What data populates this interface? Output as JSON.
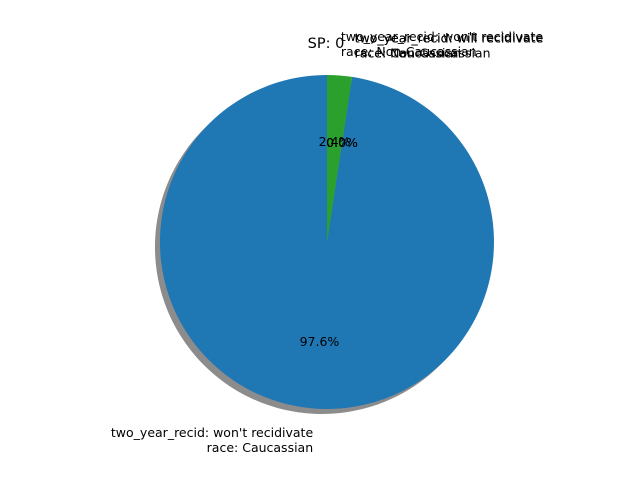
{
  "chart_data": {
    "type": "pie",
    "title": "SP: 0",
    "start_angle_deg": 90,
    "direction": "counterclockwise",
    "shadow": true,
    "slices": [
      {
        "label_lines": [
          "two_year_recid: won't recidivate",
          "race: Caucassian"
        ],
        "value": 97.6,
        "pct_label": "97.6%",
        "color": "#1f77b4"
      },
      {
        "label_lines": [
          "two_year_recid: will recidivate",
          "race: Non-Caucassian"
        ],
        "value": 0.0,
        "pct_label": "0.0%",
        "color": "#ff7f0e"
      },
      {
        "label_lines": [
          "two_year_recid: will recidivate",
          "race: Caucassian"
        ],
        "value": 0.0,
        "pct_label": "0.0%",
        "color": "#2ca02c"
      },
      {
        "label_lines": [
          "two_year_recid: won't recidivate",
          "race: Non-Caucassian"
        ],
        "value": 2.4,
        "pct_label": "2.4%",
        "color": "#2ca02c"
      }
    ]
  }
}
